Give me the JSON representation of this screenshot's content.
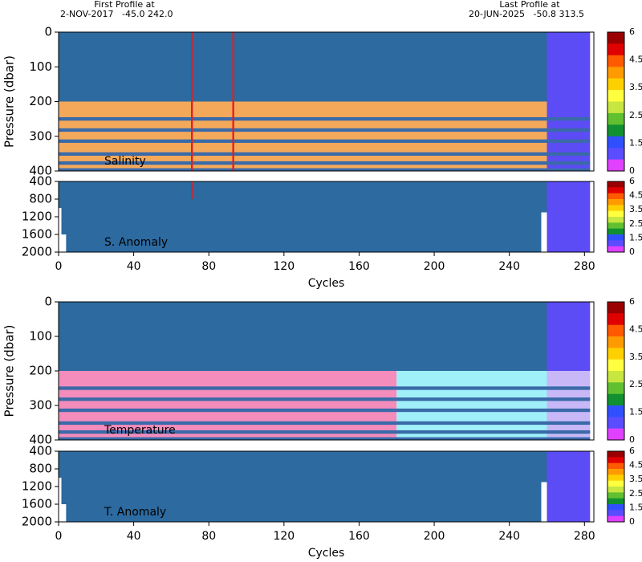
{
  "header": {
    "first_label": "First Profile at",
    "first_info": "2-NOV-2017   -45.0 242.0",
    "last_label": "Last Profile at",
    "last_info": "20-JUN-2025   -50.8 313.5"
  },
  "colorbar": {
    "colors": [
      "#9b0000",
      "#e00000",
      "#ff5a00",
      "#ff9a00",
      "#ffd000",
      "#ffff40",
      "#c8e640",
      "#60c030",
      "#109030",
      "#3050ff",
      "#5a4cff",
      "#e040ff"
    ],
    "ticks": [
      6,
      4.5,
      3.5,
      2.5,
      1.5,
      0
    ]
  },
  "chart_data": [
    {
      "type": "heatmap",
      "label": "Salinity",
      "y_label": "Pressure (dbar)",
      "xlim": [
        0,
        285
      ],
      "ylim": [
        0,
        400
      ],
      "yticks": [
        0,
        100,
        200,
        300,
        400
      ],
      "blocks": [
        {
          "x": [
            0,
            260
          ],
          "y": [
            0,
            200
          ],
          "color": "#2c6aa0"
        },
        {
          "x": [
            260,
            283
          ],
          "y": [
            0,
            400
          ],
          "color": "#5b4cf5"
        },
        {
          "x": [
            0,
            260
          ],
          "y": [
            200,
            400
          ],
          "color": "#f4a95a"
        },
        {
          "x": [
            0,
            283
          ],
          "y": [
            245,
            255
          ],
          "color": "#3a6aa8"
        },
        {
          "x": [
            0,
            283
          ],
          "y": [
            277,
            287
          ],
          "color": "#3a6aa8"
        },
        {
          "x": [
            0,
            283
          ],
          "y": [
            309,
            319
          ],
          "color": "#3a6aa8"
        },
        {
          "x": [
            0,
            283
          ],
          "y": [
            346,
            356
          ],
          "color": "#3a6aa8"
        },
        {
          "x": [
            0,
            283
          ],
          "y": [
            372,
            382
          ],
          "color": "#3a6aa8"
        },
        {
          "x": [
            0,
            283
          ],
          "y": [
            392,
            400
          ],
          "color": "#3a6aa8"
        },
        {
          "x": [
            70.5,
            71.5
          ],
          "y": [
            0,
            400
          ],
          "color": "#e02020"
        },
        {
          "x": [
            92.5,
            93.5
          ],
          "y": [
            0,
            400
          ],
          "color": "#e02020"
        }
      ]
    },
    {
      "type": "heatmap",
      "label": "S. Anomaly",
      "x_label": "Cycles",
      "xlim": [
        0,
        285
      ],
      "ylim": [
        400,
        2000
      ],
      "yticks": [
        400,
        800,
        1200,
        1600,
        2000
      ],
      "xticks": [
        0,
        40,
        80,
        120,
        160,
        200,
        240,
        280
      ],
      "blocks": [
        {
          "x": [
            0,
            260
          ],
          "y": [
            400,
            2000
          ],
          "color": "#2c6aa0"
        },
        {
          "x": [
            260,
            283
          ],
          "y": [
            400,
            2000
          ],
          "color": "#5b4cf5"
        },
        {
          "x": [
            0,
            1.5
          ],
          "y": [
            1000,
            2000
          ],
          "color": "#ffffff"
        },
        {
          "x": [
            1.5,
            4
          ],
          "y": [
            1600,
            2000
          ],
          "color": "#ffffff"
        },
        {
          "x": [
            257,
            260
          ],
          "y": [
            1100,
            2000
          ],
          "color": "#ffffff"
        },
        {
          "x": [
            70.5,
            71.5
          ],
          "y": [
            400,
            800
          ],
          "color": "#e02020"
        }
      ]
    },
    {
      "type": "heatmap",
      "label": "Temperature",
      "y_label": "Pressure (dbar)",
      "xlim": [
        0,
        285
      ],
      "ylim": [
        0,
        400
      ],
      "yticks": [
        0,
        100,
        200,
        300,
        400
      ],
      "blocks": [
        {
          "x": [
            0,
            260
          ],
          "y": [
            0,
            200
          ],
          "color": "#2c6aa0"
        },
        {
          "x": [
            260,
            283
          ],
          "y": [
            0,
            200
          ],
          "color": "#5b4cf5"
        },
        {
          "x": [
            0,
            180
          ],
          "y": [
            200,
            400
          ],
          "color": "#f48cbc"
        },
        {
          "x": [
            180,
            260
          ],
          "y": [
            200,
            400
          ],
          "color": "#9ff0f8"
        },
        {
          "x": [
            260,
            283
          ],
          "y": [
            200,
            400
          ],
          "color": "#c8b8f8"
        },
        {
          "x": [
            0,
            283
          ],
          "y": [
            245,
            255
          ],
          "color": "#3a6aa8"
        },
        {
          "x": [
            0,
            283
          ],
          "y": [
            277,
            287
          ],
          "color": "#3a6aa8"
        },
        {
          "x": [
            0,
            283
          ],
          "y": [
            309,
            319
          ],
          "color": "#3a6aa8"
        },
        {
          "x": [
            0,
            283
          ],
          "y": [
            346,
            356
          ],
          "color": "#3a6aa8"
        },
        {
          "x": [
            0,
            283
          ],
          "y": [
            372,
            382
          ],
          "color": "#3a6aa8"
        },
        {
          "x": [
            0,
            283
          ],
          "y": [
            392,
            400
          ],
          "color": "#3a6aa8"
        }
      ]
    },
    {
      "type": "heatmap",
      "label": "T. Anomaly",
      "x_label": "Cycles",
      "xlim": [
        0,
        285
      ],
      "ylim": [
        400,
        2000
      ],
      "yticks": [
        400,
        800,
        1200,
        1600,
        2000
      ],
      "xticks": [
        0,
        40,
        80,
        120,
        160,
        200,
        240,
        280
      ],
      "blocks": [
        {
          "x": [
            0,
            260
          ],
          "y": [
            400,
            2000
          ],
          "color": "#2c6aa0"
        },
        {
          "x": [
            260,
            283
          ],
          "y": [
            400,
            2000
          ],
          "color": "#5b4cf5"
        },
        {
          "x": [
            0,
            1.5
          ],
          "y": [
            1000,
            2000
          ],
          "color": "#ffffff"
        },
        {
          "x": [
            1.5,
            4
          ],
          "y": [
            1600,
            2000
          ],
          "color": "#ffffff"
        },
        {
          "x": [
            257,
            260
          ],
          "y": [
            1100,
            2000
          ],
          "color": "#ffffff"
        }
      ]
    }
  ]
}
